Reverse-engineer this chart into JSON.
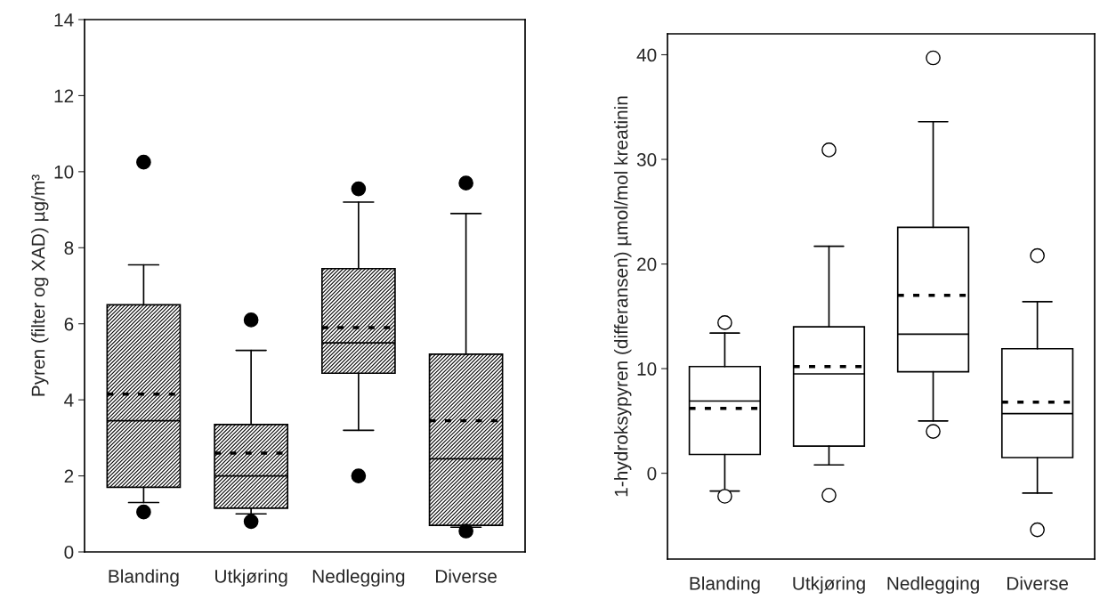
{
  "chart_data": [
    {
      "type": "box",
      "ylabel": "Pyren (filter og XAD) µg/m³",
      "categories": [
        "Blanding",
        "Utkjøring",
        "Nedlegging",
        "Diverse"
      ],
      "ylim": [
        0,
        14
      ],
      "yticks": [
        0,
        2,
        4,
        6,
        8,
        10,
        12,
        14
      ],
      "grid": false,
      "legend": false,
      "boxes": [
        {
          "low": 1.3,
          "q1": 1.7,
          "median": 3.45,
          "q3": 6.5,
          "high": 7.55,
          "mean": 4.15,
          "outliers": [
            10.25,
            1.05
          ]
        },
        {
          "low": 1.0,
          "q1": 1.15,
          "median": 2.0,
          "q3": 3.35,
          "high": 5.3,
          "mean": 2.6,
          "outliers": [
            6.1,
            0.8
          ]
        },
        {
          "low": 3.2,
          "q1": 4.7,
          "median": 5.5,
          "q3": 7.45,
          "high": 9.2,
          "mean": 5.9,
          "outliers": [
            9.55,
            2.0
          ]
        },
        {
          "low": 0.65,
          "q1": 0.7,
          "median": 2.45,
          "q3": 5.2,
          "high": 8.9,
          "mean": 3.45,
          "outliers": [
            9.7,
            0.55
          ]
        }
      ]
    },
    {
      "type": "box",
      "ylabel": "1-hydroksypyren (differansen) µmol/mol kreatinin",
      "categories": [
        "Blanding",
        "Utkjøring",
        "Nedlegging",
        "Diverse"
      ],
      "ylim": [
        -8.2,
        42
      ],
      "yticks": [
        0,
        10,
        20,
        30,
        40
      ],
      "grid": false,
      "legend": false,
      "boxes": [
        {
          "low": -1.7,
          "q1": 1.8,
          "median": 6.9,
          "q3": 10.2,
          "high": 13.4,
          "mean": 6.2,
          "outliers": [
            14.4,
            -2.2
          ]
        },
        {
          "low": 0.8,
          "q1": 2.6,
          "median": 9.5,
          "q3": 14.0,
          "high": 21.7,
          "mean": 10.2,
          "outliers": [
            30.9,
            -2.1
          ]
        },
        {
          "low": 5.0,
          "q1": 9.7,
          "median": 13.3,
          "q3": 23.5,
          "high": 33.6,
          "mean": 17.0,
          "outliers": [
            39.7,
            4.0
          ]
        },
        {
          "low": -1.9,
          "q1": 1.5,
          "median": 5.7,
          "q3": 11.9,
          "high": 16.4,
          "mean": 6.8,
          "outliers": [
            20.8,
            -5.4
          ]
        }
      ]
    }
  ]
}
